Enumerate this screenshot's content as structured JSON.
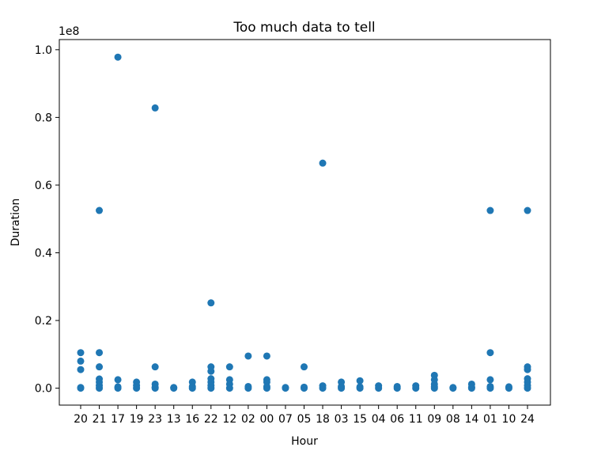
{
  "chart_data": {
    "type": "scatter",
    "title": "Too much data to tell",
    "xlabel": "Hour",
    "ylabel": "Duration",
    "y_offset_label": "1e8",
    "y_scale_factor": 100000000,
    "categories": [
      "20",
      "21",
      "17",
      "19",
      "23",
      "13",
      "16",
      "22",
      "12",
      "02",
      "00",
      "07",
      "05",
      "18",
      "03",
      "15",
      "04",
      "06",
      "11",
      "09",
      "08",
      "14",
      "01",
      "10",
      "24"
    ],
    "ylim": [
      -0.05,
      1.03
    ],
    "yticks": [
      0.0,
      0.2,
      0.4,
      0.6,
      0.8,
      1.0
    ],
    "ytick_labels": [
      "0.0",
      "0.2",
      "0.4",
      "0.6",
      "0.8",
      "1.0"
    ],
    "grid": false,
    "point_color": "#1f77b4",
    "points": [
      {
        "x": "20",
        "y": 0.105
      },
      {
        "x": "20",
        "y": 0.08
      },
      {
        "x": "20",
        "y": 0.055
      },
      {
        "x": "20",
        "y": 0.002
      },
      {
        "x": "20",
        "y": 0.0
      },
      {
        "x": "21",
        "y": 0.525
      },
      {
        "x": "21",
        "y": 0.105
      },
      {
        "x": "21",
        "y": 0.063
      },
      {
        "x": "21",
        "y": 0.027
      },
      {
        "x": "21",
        "y": 0.018
      },
      {
        "x": "21",
        "y": 0.008
      },
      {
        "x": "21",
        "y": 0.0
      },
      {
        "x": "17",
        "y": 0.978
      },
      {
        "x": "17",
        "y": 0.025
      },
      {
        "x": "17",
        "y": 0.004
      },
      {
        "x": "17",
        "y": 0.0
      },
      {
        "x": "19",
        "y": 0.018
      },
      {
        "x": "19",
        "y": 0.008
      },
      {
        "x": "19",
        "y": 0.0
      },
      {
        "x": "23",
        "y": 0.828
      },
      {
        "x": "23",
        "y": 0.063
      },
      {
        "x": "23",
        "y": 0.012
      },
      {
        "x": "23",
        "y": 0.003
      },
      {
        "x": "23",
        "y": 0.0
      },
      {
        "x": "13",
        "y": 0.002
      },
      {
        "x": "13",
        "y": 0.0
      },
      {
        "x": "16",
        "y": 0.018
      },
      {
        "x": "16",
        "y": 0.005
      },
      {
        "x": "16",
        "y": 0.0
      },
      {
        "x": "22",
        "y": 0.252
      },
      {
        "x": "22",
        "y": 0.063
      },
      {
        "x": "22",
        "y": 0.05
      },
      {
        "x": "22",
        "y": 0.028
      },
      {
        "x": "22",
        "y": 0.018
      },
      {
        "x": "22",
        "y": 0.008
      },
      {
        "x": "22",
        "y": 0.0
      },
      {
        "x": "12",
        "y": 0.063
      },
      {
        "x": "12",
        "y": 0.025
      },
      {
        "x": "12",
        "y": 0.012
      },
      {
        "x": "12",
        "y": 0.0
      },
      {
        "x": "02",
        "y": 0.095
      },
      {
        "x": "02",
        "y": 0.005
      },
      {
        "x": "02",
        "y": 0.0
      },
      {
        "x": "00",
        "y": 0.095
      },
      {
        "x": "00",
        "y": 0.025
      },
      {
        "x": "00",
        "y": 0.018
      },
      {
        "x": "00",
        "y": 0.005
      },
      {
        "x": "00",
        "y": 0.0
      },
      {
        "x": "07",
        "y": 0.002
      },
      {
        "x": "07",
        "y": 0.0
      },
      {
        "x": "05",
        "y": 0.063
      },
      {
        "x": "05",
        "y": 0.003
      },
      {
        "x": "05",
        "y": 0.0
      },
      {
        "x": "18",
        "y": 0.665
      },
      {
        "x": "18",
        "y": 0.007
      },
      {
        "x": "18",
        "y": 0.0
      },
      {
        "x": "03",
        "y": 0.018
      },
      {
        "x": "03",
        "y": 0.005
      },
      {
        "x": "03",
        "y": 0.0
      },
      {
        "x": "15",
        "y": 0.022
      },
      {
        "x": "15",
        "y": 0.004
      },
      {
        "x": "15",
        "y": 0.0
      },
      {
        "x": "04",
        "y": 0.007
      },
      {
        "x": "04",
        "y": 0.0
      },
      {
        "x": "06",
        "y": 0.005
      },
      {
        "x": "06",
        "y": 0.0
      },
      {
        "x": "11",
        "y": 0.007
      },
      {
        "x": "11",
        "y": 0.0
      },
      {
        "x": "09",
        "y": 0.038
      },
      {
        "x": "09",
        "y": 0.025
      },
      {
        "x": "09",
        "y": 0.012
      },
      {
        "x": "09",
        "y": 0.005
      },
      {
        "x": "09",
        "y": 0.0
      },
      {
        "x": "08",
        "y": 0.002
      },
      {
        "x": "08",
        "y": 0.0
      },
      {
        "x": "14",
        "y": 0.012
      },
      {
        "x": "14",
        "y": 0.003
      },
      {
        "x": "14",
        "y": 0.0
      },
      {
        "x": "01",
        "y": 0.525
      },
      {
        "x": "01",
        "y": 0.105
      },
      {
        "x": "01",
        "y": 0.025
      },
      {
        "x": "01",
        "y": 0.005
      },
      {
        "x": "01",
        "y": 0.0
      },
      {
        "x": "10",
        "y": 0.004
      },
      {
        "x": "10",
        "y": 0.0
      },
      {
        "x": "24",
        "y": 0.525
      },
      {
        "x": "24",
        "y": 0.063
      },
      {
        "x": "24",
        "y": 0.055
      },
      {
        "x": "24",
        "y": 0.028
      },
      {
        "x": "24",
        "y": 0.018
      },
      {
        "x": "24",
        "y": 0.008
      },
      {
        "x": "24",
        "y": 0.0
      }
    ]
  }
}
